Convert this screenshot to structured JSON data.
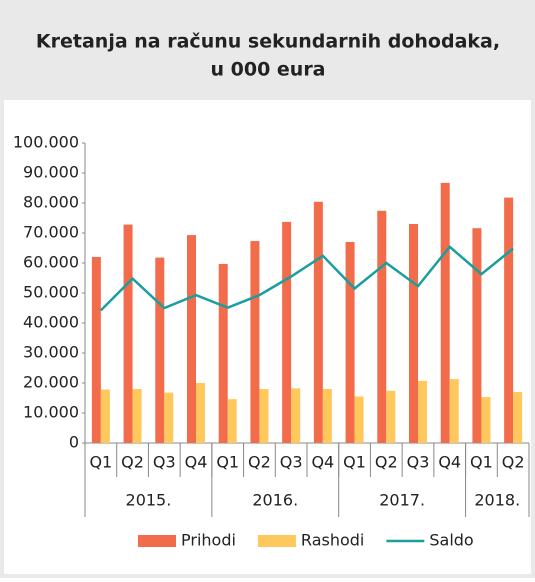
{
  "chart_data": {
    "type": "bar_line",
    "title": [
      "Kretanja na računu sekundarnih dohodaka,",
      "u 000 eura"
    ],
    "category_groups": [
      {
        "label": "2015.",
        "categories": [
          "Q1",
          "Q2",
          "Q3",
          "Q4"
        ]
      },
      {
        "label": "2016.",
        "categories": [
          "Q1",
          "Q2",
          "Q3",
          "Q4"
        ]
      },
      {
        "label": "2017.",
        "categories": [
          "Q1",
          "Q2",
          "Q3",
          "Q4"
        ]
      },
      {
        "label": "2018.",
        "categories": [
          "Q1",
          "Q2"
        ]
      }
    ],
    "series": [
      {
        "name": "Prihodi",
        "type": "bar",
        "color": "#f26b4a",
        "values": [
          62000,
          72800,
          61800,
          69300,
          59700,
          67300,
          73700,
          80400,
          67000,
          77400,
          73000,
          86700,
          71600,
          81800
        ]
      },
      {
        "name": "Rashodi",
        "type": "bar",
        "color": "#ffc85c",
        "values": [
          17800,
          18000,
          16800,
          20000,
          14600,
          18000,
          18200,
          18000,
          15500,
          17400,
          20700,
          21300,
          15300,
          17000
        ]
      },
      {
        "name": "Saldo",
        "type": "line",
        "color": "#1a9e9e",
        "values": [
          44200,
          54800,
          45000,
          49300,
          45100,
          49300,
          55500,
          62400,
          51500,
          60000,
          52300,
          65400,
          56300,
          64800
        ]
      }
    ],
    "ylim": [
      0,
      100000
    ],
    "yticks": [
      0,
      {
        "value": 10000,
        "label": "10.000"
      },
      {
        "value": 20000,
        "label": "20.000"
      },
      {
        "value": 30000,
        "label": "30.000"
      },
      {
        "value": 40000,
        "label": "40.000"
      },
      {
        "value": 50000,
        "label": "50.000"
      },
      {
        "value": 60000,
        "label": "60.000"
      },
      {
        "value": 70000,
        "label": "70.000"
      },
      {
        "value": 80000,
        "label": "80.000"
      },
      {
        "value": 90000,
        "label": "90.000"
      },
      {
        "value": 100000,
        "label": "100.000"
      }
    ],
    "legend": "bottom"
  }
}
